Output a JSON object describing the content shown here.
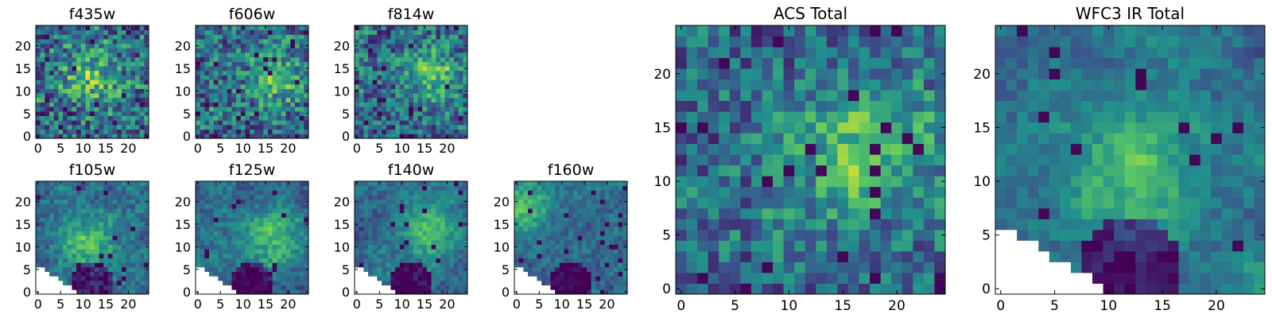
{
  "figure": {
    "colormap": [
      "#440154",
      "#3b528b",
      "#21918c",
      "#5ec962",
      "#fde725"
    ],
    "missing_color": "#ffffff"
  },
  "chart_data": [
    {
      "type": "heatmap",
      "title": "f435w",
      "grid": 25,
      "xticks": [
        0,
        5,
        10,
        15,
        20
      ],
      "yticks": [
        0,
        5,
        10,
        15,
        20
      ],
      "tick_labels_y": true,
      "mask": "none",
      "seed": 11,
      "smooth": 0.25,
      "hotspot": [
        12,
        13
      ],
      "noise": 0.55
    },
    {
      "type": "heatmap",
      "title": "f606w",
      "grid": 25,
      "xticks": [
        0,
        5,
        10,
        15,
        20
      ],
      "yticks": [
        0,
        5,
        10,
        15,
        20
      ],
      "tick_labels_y": true,
      "mask": "none",
      "seed": 23,
      "smooth": 0.3,
      "hotspot": [
        17,
        13
      ],
      "noise": 0.5
    },
    {
      "type": "heatmap",
      "title": "f814w",
      "grid": 25,
      "xticks": [
        0,
        5,
        10,
        15,
        20
      ],
      "yticks": [
        0,
        5,
        10,
        15,
        20
      ],
      "tick_labels_y": true,
      "mask": "none",
      "seed": 37,
      "smooth": 0.35,
      "hotspot": [
        17,
        14
      ],
      "noise": 0.45
    },
    {
      "type": "heatmap",
      "title": "f105w",
      "grid": 25,
      "xticks": [
        0,
        5,
        10,
        15,
        20
      ],
      "yticks": [
        0,
        5,
        10,
        15,
        20
      ],
      "tick_labels_y": true,
      "mask": "corner",
      "seed": 41,
      "smooth": 0.7,
      "hotspot": [
        11,
        11
      ],
      "noise": 0.25
    },
    {
      "type": "heatmap",
      "title": "f125w",
      "grid": 25,
      "xticks": [
        0,
        5,
        10,
        15,
        20
      ],
      "yticks": [
        0,
        5,
        10,
        15,
        20
      ],
      "tick_labels_y": true,
      "mask": "corner",
      "seed": 53,
      "smooth": 0.7,
      "hotspot": [
        17,
        12
      ],
      "noise": 0.22
    },
    {
      "type": "heatmap",
      "title": "f140w",
      "grid": 25,
      "xticks": [
        0,
        5,
        10,
        15,
        20
      ],
      "yticks": [
        0,
        5,
        10,
        15,
        20
      ],
      "tick_labels_y": true,
      "mask": "corner",
      "seed": 67,
      "smooth": 0.75,
      "hotspot": [
        16,
        14
      ],
      "noise": 0.2
    },
    {
      "type": "heatmap",
      "title": "f160w",
      "grid": 25,
      "xticks": [
        0,
        5,
        10,
        15,
        20
      ],
      "yticks": [
        0,
        5,
        10,
        15,
        20
      ],
      "tick_labels_y": true,
      "mask": "corner",
      "seed": 79,
      "smooth": 0.75,
      "hotspot": [
        1,
        19
      ],
      "noise": 0.2
    },
    {
      "type": "heatmap",
      "title": "ACS Total",
      "grid": 25,
      "xticks": [
        0,
        5,
        10,
        15,
        20
      ],
      "yticks": [
        0,
        5,
        10,
        15,
        20
      ],
      "tick_labels_y": true,
      "mask": "none",
      "seed": 97,
      "smooth": 0.45,
      "hotspot": [
        17,
        13
      ],
      "noise": 0.4
    },
    {
      "type": "heatmap",
      "title": "WFC3 IR Total",
      "grid": 25,
      "xticks": [
        0,
        5,
        10,
        15,
        20
      ],
      "yticks": [
        0,
        5,
        10,
        15,
        20
      ],
      "tick_labels_y": true,
      "mask": "corner_big",
      "seed": 103,
      "smooth": 0.8,
      "hotspot": [
        12,
        11
      ],
      "noise": 0.18
    }
  ]
}
